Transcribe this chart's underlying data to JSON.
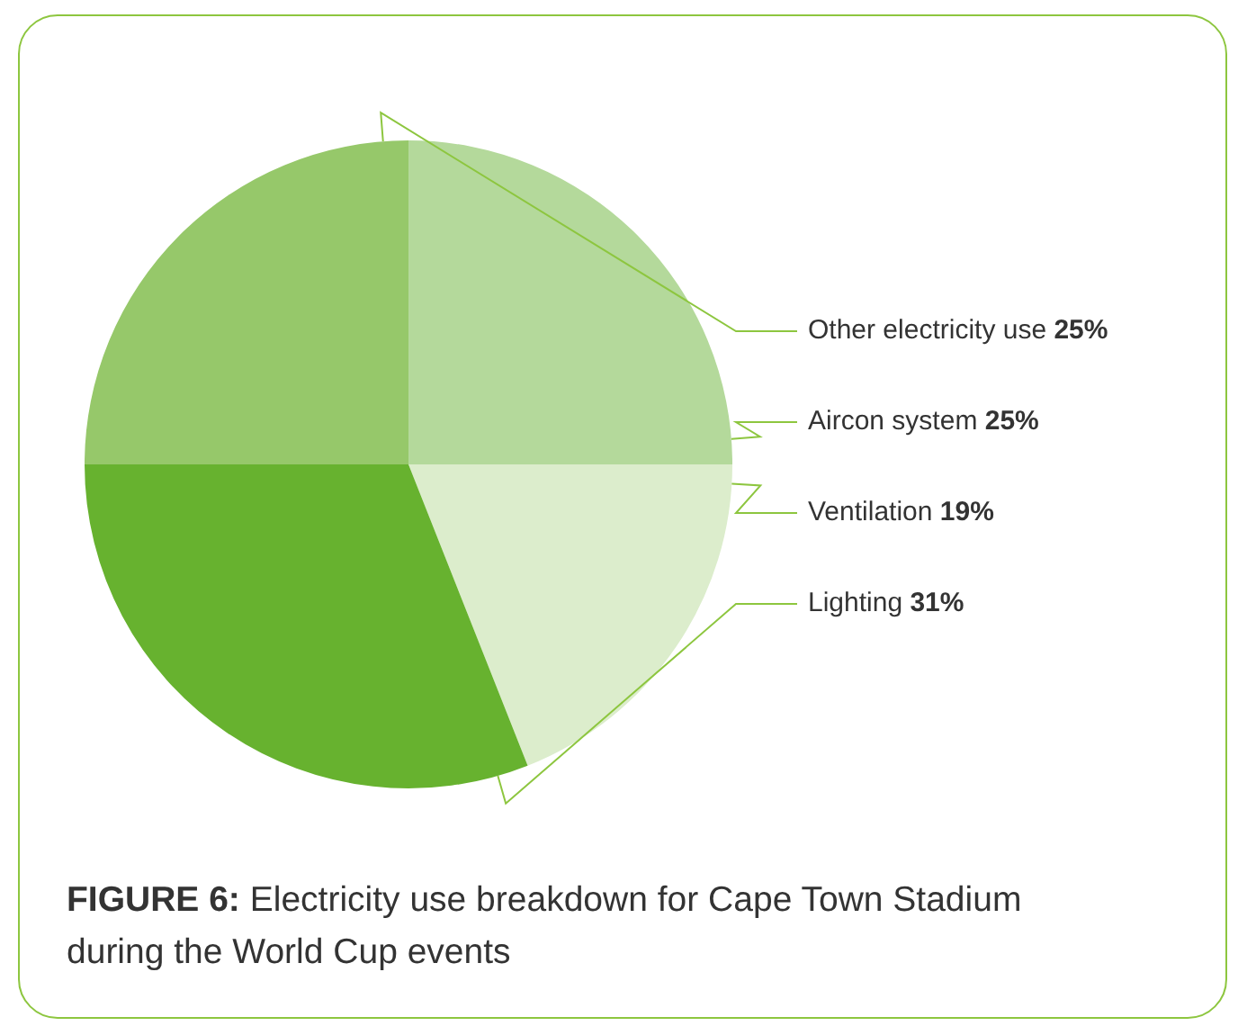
{
  "chart_data": {
    "type": "pie",
    "title": "FIGURE 6: Electricity use breakdown for Cape Town Stadium during the World Cup events",
    "categories": [
      "Other electricity use",
      "Aircon system",
      "Ventilation",
      "Lighting"
    ],
    "values": [
      25,
      25,
      19,
      31
    ],
    "colors": [
      "#96c86a",
      "#b4d99b",
      "#dcedcc",
      "#67b22f"
    ],
    "value_labels": [
      "25%",
      "25%",
      "19%",
      "31%"
    ],
    "legend": false
  }
}
